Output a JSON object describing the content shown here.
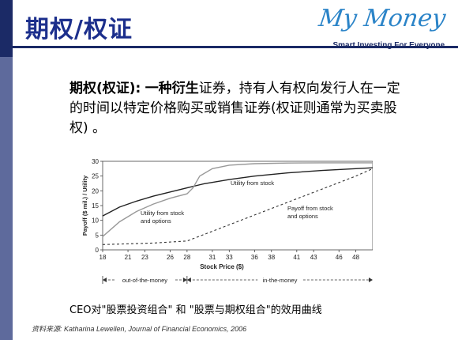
{
  "header": {
    "title": "期权/权证",
    "logo_text": "My Money",
    "logo_tagline": "Smart Investing For Everyone."
  },
  "definition": {
    "term": "期权(权证):",
    "bold_phrase": "一种衍生",
    "rest": "证券，持有人有权向发行人在一定的时间以特定价格购买或销售证券(权证则通常为买卖股权) 。"
  },
  "caption": "CEO对\"股票投资组合\" 和 \"股票与期权组合\"的效用曲线",
  "source": "资料来源: Katharina Lewellen, Journal of Financial Economics, 2006",
  "colors": {
    "title": "#1c2f8c",
    "bar": "#1b2a66",
    "logo": "#2b84c8"
  },
  "chart_data": {
    "type": "line",
    "xlabel": "Stock Price ($)",
    "ylabel": "Payoff ($ mil.) / Utility",
    "xlim": [
      18,
      50
    ],
    "ylim": [
      0,
      30
    ],
    "xticks": [
      18,
      21,
      23,
      26,
      28,
      31,
      33,
      36,
      38,
      41,
      43,
      46,
      48
    ],
    "yticks": [
      0,
      5,
      10,
      15,
      20,
      25,
      30
    ],
    "regions": [
      {
        "label": "out-of-the-money",
        "from": 18,
        "to": 28
      },
      {
        "label": "in-the-money",
        "from": 28,
        "to": 50
      }
    ],
    "series": [
      {
        "name": "Utility from stock",
        "style": "solid-dark",
        "x": [
          18,
          20,
          22,
          24,
          26,
          28,
          30,
          33,
          36,
          40,
          44,
          48,
          50
        ],
        "y": [
          11.5,
          14.5,
          16.5,
          18.2,
          19.6,
          21,
          22.4,
          23.8,
          25,
          26.1,
          26.9,
          27.5,
          27.8
        ]
      },
      {
        "name": "Utility from stock and options",
        "style": "solid-gray",
        "x": [
          18,
          20,
          22,
          24,
          26,
          28,
          28.7,
          29.5,
          31,
          33,
          36,
          40,
          44,
          48,
          50
        ],
        "y": [
          4.5,
          9.5,
          13,
          15.5,
          17.5,
          19,
          21,
          25,
          27.5,
          28.7,
          29.2,
          29.4,
          29.5,
          29.5,
          29.5
        ]
      },
      {
        "name": "Payoff from stock and options",
        "style": "dashed-dark",
        "x": [
          18,
          24,
          28,
          32,
          36,
          40,
          44,
          48,
          50
        ],
        "y": [
          1.8,
          2.3,
          3,
          7.4,
          11.8,
          16.2,
          20.6,
          25,
          27.5
        ]
      }
    ]
  }
}
